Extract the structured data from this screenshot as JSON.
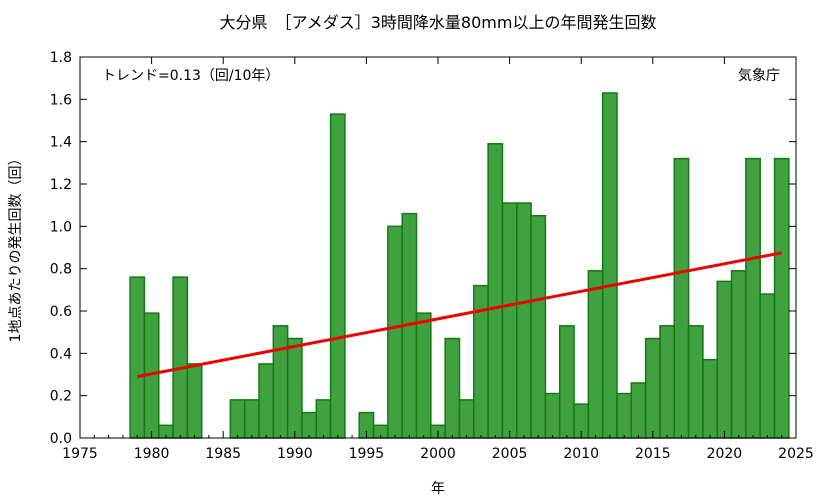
{
  "chart_data": {
    "type": "bar",
    "title": "大分県　［アメダス］3時間降水量80mm以上の年間発生回数",
    "xlabel": "年",
    "ylabel": "1地点あたりの発生回数（回）",
    "annotation_left": "トレンド=0.13（回/10年）",
    "annotation_right": "気象庁",
    "xlim": [
      1975,
      2025
    ],
    "ylim": [
      0.0,
      1.8
    ],
    "x_ticks": [
      "1975",
      "1980",
      "1985",
      "1990",
      "1995",
      "2000",
      "2005",
      "2010",
      "2015",
      "2020",
      "2025"
    ],
    "y_ticks": [
      "0.0",
      "0.2",
      "0.4",
      "0.6",
      "0.8",
      "1.0",
      "1.2",
      "1.4",
      "1.6",
      "1.8"
    ],
    "years": [
      1979,
      1980,
      1981,
      1982,
      1983,
      1984,
      1985,
      1986,
      1987,
      1988,
      1989,
      1990,
      1991,
      1992,
      1993,
      1994,
      1995,
      1996,
      1997,
      1998,
      1999,
      2000,
      2001,
      2002,
      2003,
      2004,
      2005,
      2006,
      2007,
      2008,
      2009,
      2010,
      2011,
      2012,
      2013,
      2014,
      2015,
      2016,
      2017,
      2018,
      2019,
      2020,
      2021,
      2022,
      2023,
      2024
    ],
    "values": [
      0.76,
      0.59,
      0.06,
      0.76,
      0.35,
      0.0,
      0.0,
      0.18,
      0.18,
      0.35,
      0.53,
      0.47,
      0.12,
      0.18,
      1.53,
      0.0,
      0.12,
      0.06,
      1.0,
      1.06,
      0.59,
      0.06,
      0.47,
      0.18,
      0.72,
      1.39,
      1.11,
      1.11,
      1.05,
      0.21,
      0.53,
      0.16,
      0.79,
      1.63,
      0.21,
      0.26,
      0.47,
      0.53,
      1.32,
      0.53,
      0.37,
      0.74,
      0.79,
      1.32,
      0.68,
      1.32
    ],
    "trend": {
      "x": [
        1979,
        2024
      ],
      "y": [
        0.29,
        0.875
      ]
    },
    "grid": false,
    "colors": {
      "bar_fill": "#41a141",
      "bar_edge": "#137a13",
      "trend": "#ee0000"
    }
  }
}
